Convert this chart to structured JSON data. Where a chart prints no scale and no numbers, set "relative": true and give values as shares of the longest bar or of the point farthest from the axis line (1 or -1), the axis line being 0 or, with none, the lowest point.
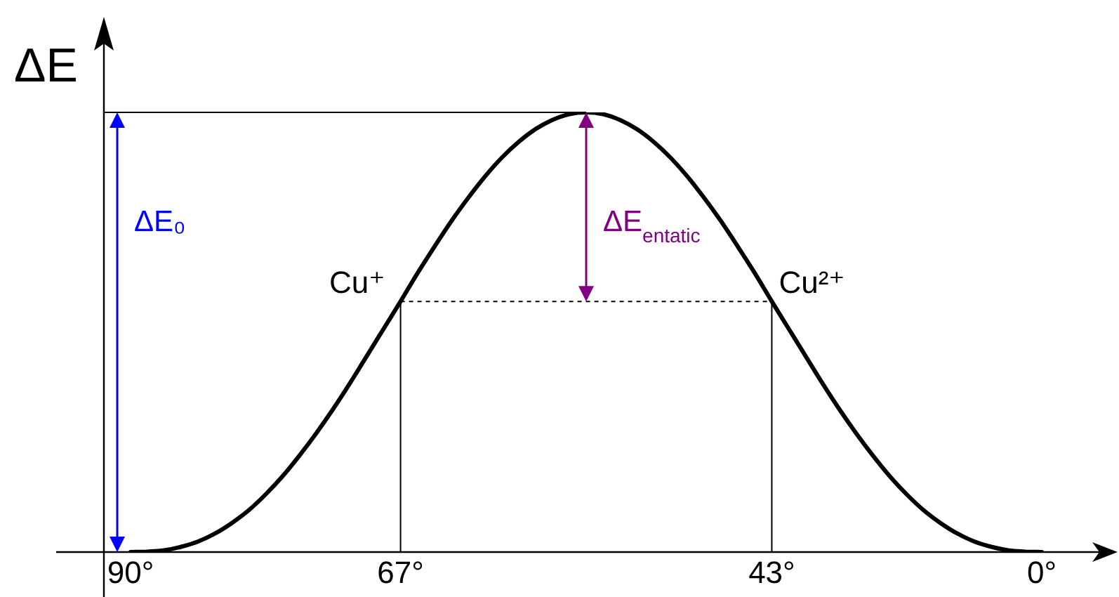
{
  "chart_data": {
    "type": "line",
    "ylabel": "ΔE",
    "relative": true,
    "categories": [
      "90°",
      null,
      null,
      null,
      null,
      null,
      null,
      null,
      null,
      null,
      null,
      null,
      null,
      null,
      null,
      null,
      "67°",
      null,
      null,
      null,
      null,
      null,
      null,
      null,
      null,
      null,
      null,
      null,
      null,
      null,
      null,
      null,
      null,
      null,
      null,
      null,
      null,
      null,
      "43°",
      null,
      null,
      null,
      null,
      null,
      null,
      null,
      null,
      null,
      null,
      null,
      null,
      null,
      null,
      null,
      "0°"
    ],
    "series": [
      {
        "color": "#000000",
        "values": [
          0,
          0.001,
          0.004,
          0.012,
          0.024,
          0.042,
          0.066,
          0.095,
          0.131,
          0.172,
          0.219,
          0.27,
          0.325,
          0.384,
          0.446,
          0.508,
          0.57,
          0.634,
          0.694,
          0.752,
          0.805,
          0.854,
          0.897,
          0.933,
          0.962,
          0.983,
          0.996,
          1,
          0.996,
          0.983,
          0.962,
          0.933,
          0.897,
          0.854,
          0.805,
          0.752,
          0.694,
          0.634,
          0.57,
          0.508,
          0.446,
          0.384,
          0.325,
          0.27,
          0.219,
          0.172,
          0.131,
          0.095,
          0.066,
          0.042,
          0.024,
          0.012,
          0.004,
          0.001,
          0
        ]
      }
    ],
    "ref_lines": [
      {
        "axis": "x",
        "value": "67°",
        "color": "#000000"
      },
      {
        "axis": "x",
        "value": "43°",
        "color": "#000000"
      },
      {
        "axis": "y",
        "value": 0.57,
        "color": "#000000",
        "line_style": "dotted"
      },
      {
        "axis": "y",
        "value": 1,
        "color": "#000000",
        "line_style": "solid"
      }
    ],
    "annotations": [
      "ΔE₀",
      "ΔE$_{entatic}$",
      {
        "text": "Cu⁺",
        "x": "67°",
        "y": 0.57
      },
      {
        "text": "Cu²⁺",
        "x": "43°",
        "y": 0.57
      }
    ]
  }
}
